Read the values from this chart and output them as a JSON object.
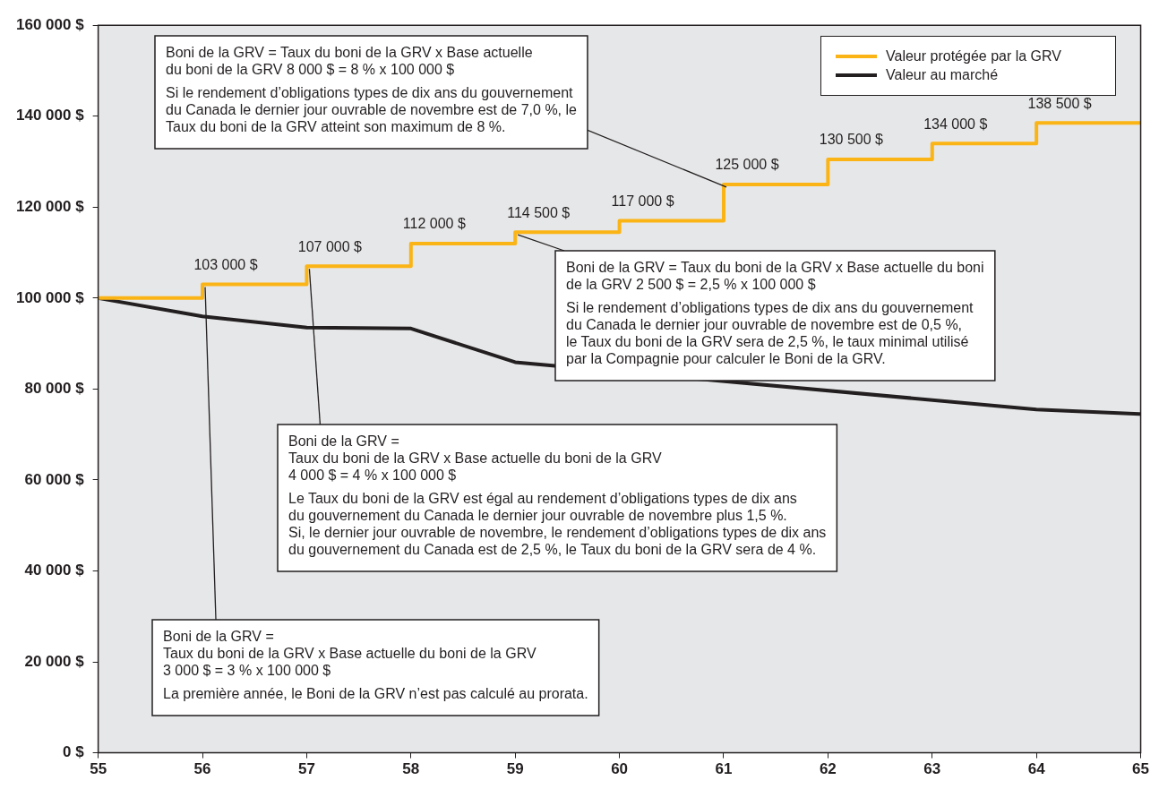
{
  "chart_data": {
    "type": "line",
    "x": [
      55,
      56,
      57,
      58,
      59,
      60,
      61,
      62,
      63,
      64,
      65
    ],
    "series": [
      {
        "name": "Valeur protégée par la GRV",
        "type": "step",
        "color": "#fbb415",
        "values": [
          100000,
          103000,
          107000,
          112000,
          114500,
          117000,
          125000,
          130500,
          134000,
          138500,
          138500
        ],
        "value_labels": [
          null,
          "103 000 $",
          "107 000 $",
          "112 000 $",
          "114 500 $",
          "117 000 $",
          "125 000 $",
          "130 500 $",
          "134 000 $",
          "138 500 $",
          null
        ]
      },
      {
        "name": "Valeur au marché",
        "color": "#231f20",
        "values": [
          100000,
          96000,
          93500,
          93300,
          85900,
          null,
          null,
          null,
          null,
          75500,
          74500
        ]
      }
    ],
    "xlim": [
      55,
      65
    ],
    "xticks": [
      55,
      56,
      57,
      58,
      59,
      60,
      61,
      62,
      63,
      64,
      65
    ],
    "ylim": [
      0,
      160000
    ],
    "yticks": [
      {
        "value": 0,
        "label": "0 $"
      },
      {
        "value": 20000,
        "label": "20 000 $"
      },
      {
        "value": 40000,
        "label": "40 000 $"
      },
      {
        "value": 60000,
        "label": "60 000 $"
      },
      {
        "value": 80000,
        "label": "80 000 $"
      },
      {
        "value": 100000,
        "label": "100 000 $"
      },
      {
        "value": 120000,
        "label": "120 000 $"
      },
      {
        "value": 140000,
        "label": "140 000 $"
      },
      {
        "value": 160000,
        "label": "160 000 $"
      }
    ],
    "grid": false,
    "legend": "top right",
    "marker": "none",
    "annotations": [
      {
        "text": "Boni de la GRV = Taux du boni de la GRV x Base actuelle\ndu boni de la GRV 8 000 $ = 8 % x 100 000 $\n\nSi le rendement d’obligations types de dix ans du gouvernement\ndu Canada le dernier jour ouvrable de novembre est de 7,0 %, le\nTaux du boni de la GRV atteint son maximum de 8 %.",
        "x": 61,
        "y": 125000
      },
      {
        "text": "Boni de la GRV = Taux du boni de la GRV x Base actuelle du boni\nde la GRV 2 500 $ = 2,5 % x 100 000 $\n\nSi le rendement d’obligations types de dix ans du gouvernement\ndu Canada le dernier jour ouvrable de novembre est de 0,5 %,\nle Taux du boni de la GRV sera de 2,5 %, le taux minimal utilisé\npar la Compagnie pour calculer le Boni de la GRV.",
        "x": 59,
        "y": 114500
      },
      {
        "text": "Boni de la GRV =\nTaux du boni de la GRV x Base actuelle du boni de la GRV\n4 000 $ = 4 % x 100 000 $\n\nLe Taux du boni de la GRV est égal au rendement d’obligations types de dix ans\ndu gouvernement du Canada le dernier jour ouvrable de novembre plus 1,5 %.\nSi, le dernier jour ouvrable de novembre, le rendement d’obligations types de dix ans\ndu gouvernement du Canada est de 2,5 %, le Taux du boni de la GRV sera de 4 %.",
        "x": 57,
        "y": 107000
      },
      {
        "text": "Boni de la GRV =\nTaux du boni de la GRV x Base actuelle du boni de la GRV\n3 000 $ = 3 % x 100 000 $\n\nLa première année, le Boni de la GRV n’est pas calculé au prorata.",
        "x": 56,
        "y": 103000
      }
    ]
  }
}
